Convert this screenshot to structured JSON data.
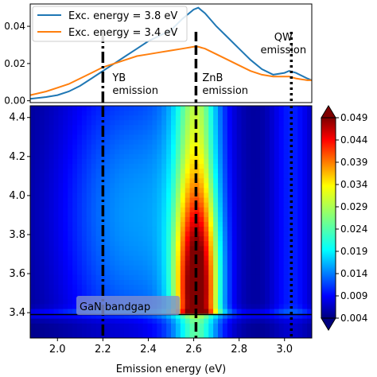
{
  "chart_data": [
    {
      "type": "line",
      "x": [
        1.88,
        1.95,
        2.0,
        2.05,
        2.1,
        2.15,
        2.2,
        2.25,
        2.3,
        2.35,
        2.4,
        2.45,
        2.5,
        2.55,
        2.6,
        2.62,
        2.65,
        2.7,
        2.75,
        2.8,
        2.85,
        2.9,
        2.95,
        3.0,
        3.02,
        3.05,
        3.1,
        3.12
      ],
      "series": [
        {
          "name": "Exc. energy = 3.8 eV",
          "color": "#1f77b4",
          "values": [
            0.001,
            0.002,
            0.003,
            0.005,
            0.008,
            0.012,
            0.016,
            0.02,
            0.024,
            0.028,
            0.032,
            0.035,
            0.038,
            0.044,
            0.049,
            0.05,
            0.047,
            0.04,
            0.034,
            0.028,
            0.022,
            0.017,
            0.014,
            0.015,
            0.016,
            0.015,
            0.012,
            0.011
          ]
        },
        {
          "name": "Exc. energy = 3.4 eV",
          "color": "#ff7f0e",
          "values": [
            0.003,
            0.005,
            0.007,
            0.009,
            0.012,
            0.015,
            0.018,
            0.02,
            0.022,
            0.024,
            0.025,
            0.026,
            0.027,
            0.028,
            0.029,
            0.029,
            0.028,
            0.025,
            0.022,
            0.019,
            0.016,
            0.014,
            0.013,
            0.013,
            0.013,
            0.012,
            0.011,
            0.011
          ]
        }
      ],
      "yticks": [
        "0.00",
        "0.02",
        "0.04"
      ],
      "ylim": [
        -0.001,
        0.052
      ],
      "xlim": [
        1.88,
        3.12
      ],
      "legend": "top-left",
      "annotations": [
        {
          "text_lines": [
            "YB",
            "emission"
          ],
          "x": 2.2
        },
        {
          "text_lines": [
            "ZnB",
            "emission"
          ],
          "x": 2.61
        },
        {
          "text_lines": [
            "QW",
            "emission"
          ],
          "x": 3.03
        }
      ]
    },
    {
      "type": "heatmap",
      "xlabel": "Emission energy (eV)",
      "ylabel": "",
      "xlim": [
        1.88,
        3.12
      ],
      "ylim": [
        3.27,
        4.46
      ],
      "xticks": [
        "2.0",
        "2.2",
        "2.4",
        "2.6",
        "2.8",
        "3.0"
      ],
      "yticks": [
        "3.4",
        "3.6",
        "3.8",
        "4.0",
        "4.2",
        "4.4"
      ],
      "colorscale": "jet",
      "zlim": [
        0.004,
        0.0495
      ],
      "colorbar_ticks": [
        "0.049",
        "0.044",
        "0.039",
        "0.034",
        "0.029",
        "0.024",
        "0.019",
        "0.014",
        "0.009",
        "0.004"
      ],
      "bandgap_label": "GaN bandgap",
      "bandgap_y": 3.39,
      "vlines": [
        {
          "x": 2.2,
          "style": "dashdot"
        },
        {
          "x": 2.61,
          "style": "dashed"
        },
        {
          "x": 3.03,
          "style": "dotted"
        }
      ]
    }
  ]
}
